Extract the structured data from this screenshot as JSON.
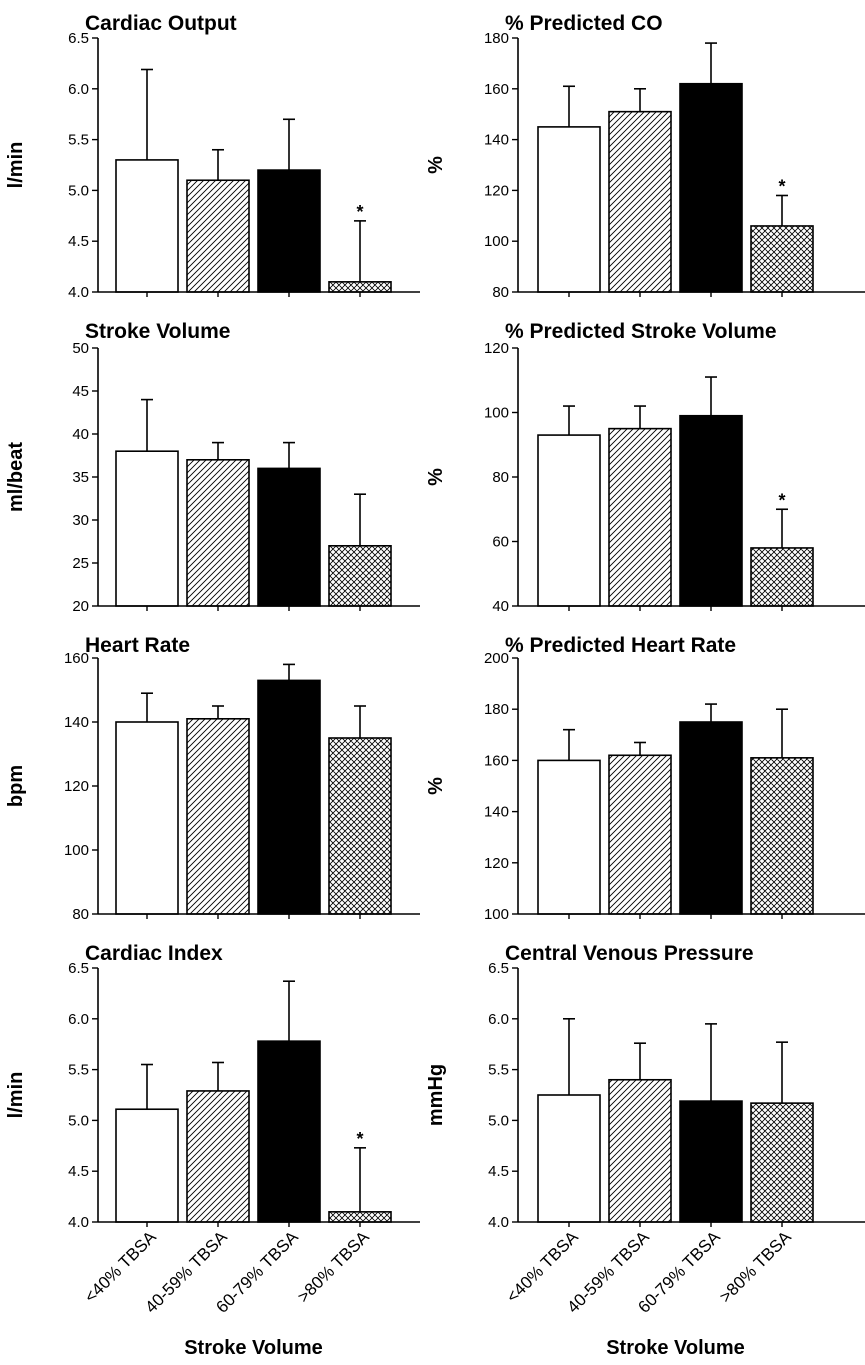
{
  "x_axis_label": "Stroke Volume",
  "categories": [
    "<40% TBSA",
    "40-59% TBSA",
    "60-79% TBSA",
    ">80% TBSA"
  ],
  "significance_marker": "*",
  "chart_data": [
    {
      "type": "bar",
      "title": "Cardiac Output",
      "ylabel": "l/min",
      "ylim": [
        4.0,
        6.5
      ],
      "yticks": [
        "4.0",
        "4.5",
        "5.0",
        "5.5",
        "6.0",
        "6.5"
      ],
      "categories": [
        "<40% TBSA",
        "40-59% TBSA",
        "60-79% TBSA",
        ">80% TBSA"
      ],
      "values": [
        5.3,
        5.1,
        5.2,
        4.1
      ],
      "errors": [
        0.89,
        0.3,
        0.5,
        0.6
      ],
      "significant": [
        false,
        false,
        false,
        true
      ]
    },
    {
      "type": "bar",
      "title": "% Predicted CO",
      "ylabel": "%",
      "ylim": [
        80,
        180
      ],
      "yticks": [
        "80",
        "100",
        "120",
        "140",
        "160",
        "180"
      ],
      "categories": [
        "<40% TBSA",
        "40-59% TBSA",
        "60-79% TBSA",
        ">80% TBSA"
      ],
      "values": [
        145,
        151,
        162,
        106
      ],
      "errors": [
        16,
        9,
        16,
        12
      ],
      "significant": [
        false,
        false,
        false,
        true
      ]
    },
    {
      "type": "bar",
      "title": "Stroke Volume",
      "ylabel": "ml/beat",
      "ylim": [
        20,
        50
      ],
      "yticks": [
        "20",
        "25",
        "30",
        "35",
        "40",
        "45",
        "50"
      ],
      "categories": [
        "<40% TBSA",
        "40-59% TBSA",
        "60-79% TBSA",
        ">80% TBSA"
      ],
      "values": [
        38,
        37,
        36,
        27
      ],
      "errors": [
        6,
        2,
        3,
        6
      ],
      "significant": [
        false,
        false,
        false,
        false
      ]
    },
    {
      "type": "bar",
      "title": "% Predicted Stroke Volume",
      "ylabel": "%",
      "ylim": [
        40,
        120
      ],
      "yticks": [
        "40",
        "60",
        "80",
        "100",
        "120"
      ],
      "categories": [
        "<40% TBSA",
        "40-59% TBSA",
        "60-79% TBSA",
        ">80% TBSA"
      ],
      "values": [
        93,
        95,
        99,
        58
      ],
      "errors": [
        9,
        7,
        12,
        12
      ],
      "significant": [
        false,
        false,
        false,
        true
      ]
    },
    {
      "type": "bar",
      "title": "Heart Rate",
      "ylabel": "bpm",
      "ylim": [
        80,
        160
      ],
      "yticks": [
        "80",
        "100",
        "120",
        "140",
        "160"
      ],
      "categories": [
        "<40% TBSA",
        "40-59% TBSA",
        "60-79% TBSA",
        ">80% TBSA"
      ],
      "values": [
        140,
        141,
        153,
        135
      ],
      "errors": [
        9,
        4,
        5,
        10
      ],
      "significant": [
        false,
        false,
        false,
        false
      ]
    },
    {
      "type": "bar",
      "title": "% Predicted Heart Rate",
      "ylabel": "%",
      "ylim": [
        100,
        200
      ],
      "yticks": [
        "100",
        "120",
        "140",
        "160",
        "180",
        "200"
      ],
      "categories": [
        "<40% TBSA",
        "40-59% TBSA",
        "60-79% TBSA",
        ">80% TBSA"
      ],
      "values": [
        160,
        162,
        175,
        161
      ],
      "errors": [
        12,
        5,
        7,
        19
      ],
      "significant": [
        false,
        false,
        false,
        false
      ]
    },
    {
      "type": "bar",
      "title": "Cardiac Index",
      "ylabel": "l/min",
      "ylim": [
        4.0,
        6.5
      ],
      "yticks": [
        "4.0",
        "4.5",
        "5.0",
        "5.5",
        "6.0",
        "6.5"
      ],
      "categories": [
        "<40% TBSA",
        "40-59% TBSA",
        "60-79% TBSA",
        ">80% TBSA"
      ],
      "values": [
        5.11,
        5.29,
        5.78,
        4.1
      ],
      "errors": [
        0.44,
        0.28,
        0.59,
        0.63
      ],
      "significant": [
        false,
        false,
        false,
        true
      ]
    },
    {
      "type": "bar",
      "title": "Central Venous Pressure",
      "ylabel": "mmHg",
      "ylim": [
        4.0,
        6.5
      ],
      "yticks": [
        "4.0",
        "4.5",
        "5.0",
        "5.5",
        "6.0",
        "6.5"
      ],
      "categories": [
        "<40% TBSA",
        "40-59% TBSA",
        "60-79% TBSA",
        ">80% TBSA"
      ],
      "values": [
        5.25,
        5.4,
        5.19,
        5.17
      ],
      "errors": [
        0.75,
        0.36,
        0.76,
        0.6
      ],
      "significant": [
        false,
        false,
        false,
        false
      ]
    }
  ]
}
